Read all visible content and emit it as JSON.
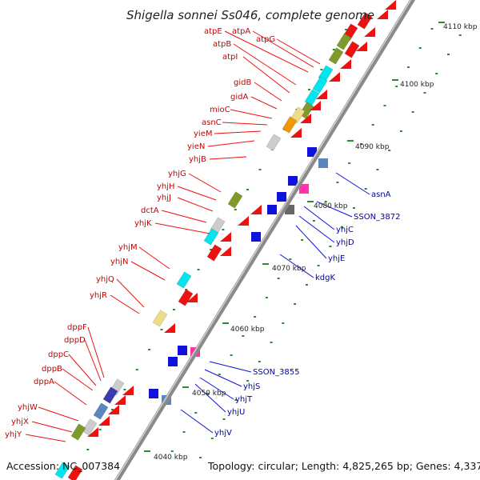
{
  "title": "Shigella sonnei Ss046, complete genome",
  "footer": {
    "accession": "Accession: NC_007384",
    "summary": "Topology: circular; Length: 4,825,265 bp; Genes: 4,337"
  },
  "colors": {
    "forward": "#ee1111",
    "reverse": "#1111dd",
    "backbone": "#8a8a8a",
    "dots": "#2e8b2e",
    "label_forward": "#cc0000",
    "label_reverse": "#0000aa"
  },
  "ticks": [
    "4110 kbp",
    "4100 kbp",
    "4090 kbp",
    "4080 kbp",
    "4070 kbp",
    "4060 kbp",
    "4050 kbp",
    "4040 kbp"
  ],
  "forward_genes": [
    "atpE",
    "atpA",
    "atpG",
    "atpB",
    "atpI",
    "gidB",
    "gidA",
    "mioC",
    "asnC",
    "yieM",
    "yieN",
    "yhjB",
    "yhjG",
    "yhjH",
    "yhjJ",
    "dctA",
    "yhjK",
    "yhjM",
    "yhjN",
    "yhjQ",
    "yhjR",
    "dppF",
    "dppD",
    "dppC",
    "dppB",
    "dppA",
    "yhjW",
    "yhjX",
    "yhjY"
  ],
  "reverse_genes": [
    "asnA",
    "SSON_3872",
    "yhjC",
    "yhjD",
    "yhjE",
    "kdgK",
    "SSON_3855",
    "yhjS",
    "yhjT",
    "yhjU",
    "yhjV"
  ]
}
